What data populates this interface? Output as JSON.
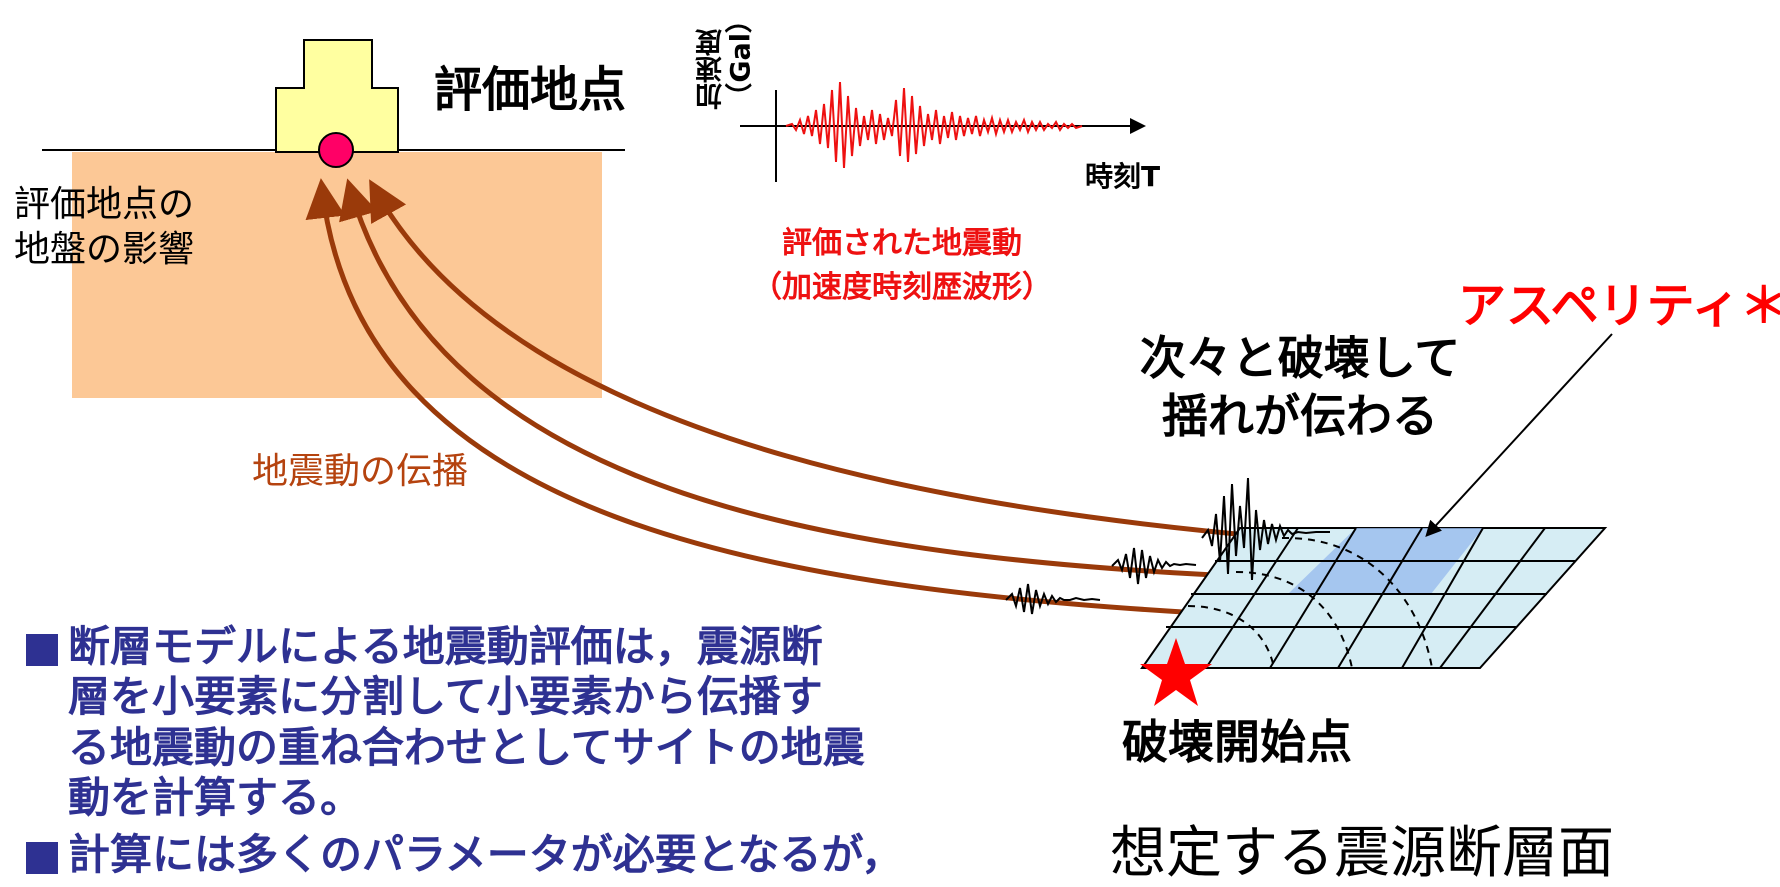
{
  "labels": {
    "evaluation_site": "評価地点",
    "site_ground_effect": [
      "評価地点の",
      "地盤の影響"
    ],
    "propagation": "地震動の伝播",
    "acceleration_axis": [
      "加速度",
      "（Gal）"
    ],
    "time_axis": "時刻T",
    "evaluated_motion": [
      "評価された地震動",
      "（加速度時刻歴波形）"
    ],
    "asperity": "アスペリティ＊",
    "successive_rupture": [
      "次々と破壊して",
      "揺れが伝わる"
    ],
    "rupture_start": "破壊開始点",
    "fault_plane": "想定する震源断層面"
  },
  "bullets": [
    {
      "icon": "square-bullet-icon",
      "lines": [
        "断層モデルによる地震動評価は，震源断",
        "層を小要素に分割して小要素から伝播す",
        "る地震動の重ね合わせとしてサイトの地震",
        "動を計算する。"
      ]
    },
    {
      "icon": "square-bullet-icon",
      "lines": [
        "計算には多くのパラメータが必要となるが，"
      ]
    }
  ],
  "colors": {
    "ground": "#fcc896",
    "building": "#ffffa0",
    "site_marker": "#ff0066",
    "wave_red": "#ee1111",
    "propagation_arrow": "#9a3a0a",
    "fault_grid": "#d6edf4",
    "asperity_patch": "#99bbee",
    "hypocenter_star": "#ff0000",
    "bullet_text": "#2e3192"
  }
}
